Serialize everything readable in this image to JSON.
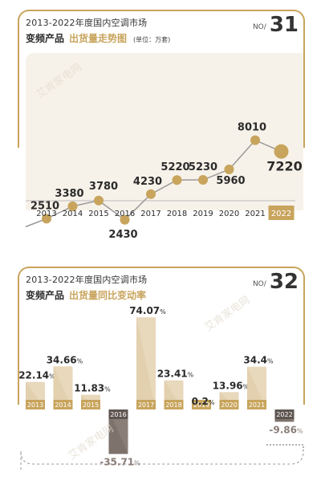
{
  "chart1": {
    "subtitle": "2013-2022年度国内空调市场",
    "title_black": "变频产品",
    "title_gold": "出货量走势图",
    "unit": "(单位：万套)",
    "no_label": "NO/",
    "no_value": "31"
  },
  "chart2": {
    "subtitle": "2013-2022年度国内空调市场",
    "title_black": "变频产品",
    "title_gold": "出货量同比变动率",
    "no_label": "NO/",
    "no_value": "32"
  },
  "watermark": "艾肯家电网",
  "colors": {
    "gold": "#c8a45c",
    "bar_light": "#e8d8bc",
    "bar_dark": "#8a7e78",
    "line": "#999999",
    "text": "#2b2b2b"
  },
  "chart_data": [
    {
      "type": "line",
      "x": [
        "2013",
        "2014",
        "2015",
        "2016",
        "2017",
        "2018",
        "2019",
        "2020",
        "2021",
        "2022"
      ],
      "series": [
        {
          "values": [
            2510,
            3380,
            3780,
            2430,
            4230,
            5220,
            5230,
            5960,
            8010,
            7220
          ]
        }
      ],
      "labels": [
        "2510",
        "3380",
        "3780",
        "2430",
        "4230",
        "5220",
        "5230",
        "5960",
        "8010",
        "7220"
      ],
      "highlight_index": 9,
      "ylim": [
        0,
        9000
      ]
    },
    {
      "type": "bar",
      "categories": [
        "2013",
        "2014",
        "2015",
        "2016",
        "2017",
        "2018",
        "2019",
        "2020",
        "2021",
        "2022"
      ],
      "values": [
        22.14,
        34.66,
        11.83,
        -35.71,
        74.07,
        23.41,
        0.2,
        13.96,
        34.4,
        -9.86
      ],
      "labels": [
        "22.14",
        "34.66",
        "11.83",
        "-35.71",
        "74.07",
        "23.41",
        "0.2",
        "13.96",
        "34.4",
        "-9.86"
      ],
      "label_suffix": "%",
      "ylim": [
        -40,
        80
      ]
    }
  ]
}
